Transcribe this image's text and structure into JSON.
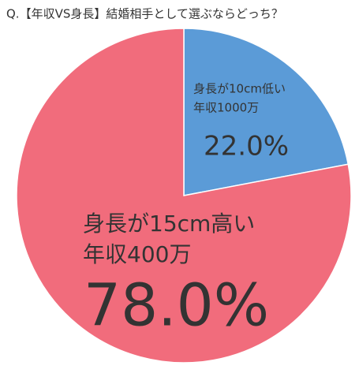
{
  "chart_data": {
    "type": "pie",
    "title": "Q.【年収VS身長】結婚相手として選ぶならどっち？",
    "categories": [
      [
        "身長が10cm低い",
        "年収1000万"
      ],
      [
        "身長が15cm高い",
        "年収400万"
      ]
    ],
    "values": [
      22.0,
      78.0
    ],
    "value_labels": [
      "22.0%",
      "78.0%"
    ],
    "colors": [
      "#5b9bd7",
      "#f16c7c"
    ]
  }
}
